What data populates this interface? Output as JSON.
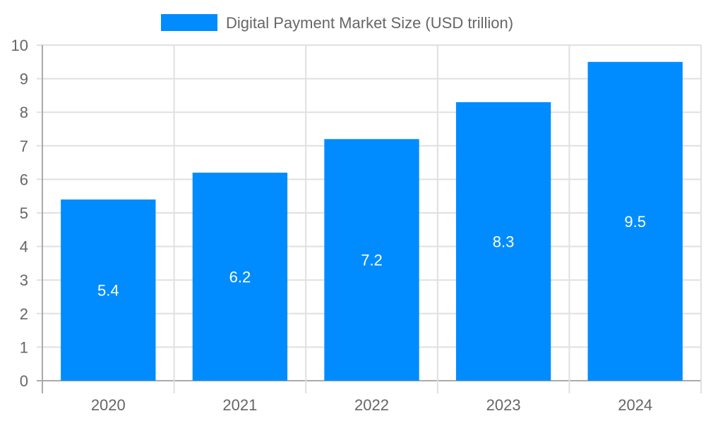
{
  "chart_data": {
    "type": "bar",
    "title": "",
    "legend": [
      {
        "label": "Digital Payment Market Size (USD trillion)",
        "color": "#008cff"
      }
    ],
    "legend_position": "top",
    "categories": [
      "2020",
      "2021",
      "2022",
      "2023",
      "2024"
    ],
    "series": [
      {
        "name": "Digital Payment Market Size (USD trillion)",
        "values": [
          5.4,
          6.2,
          7.2,
          8.3,
          9.5
        ],
        "color": "#008cff"
      }
    ],
    "data_labels": [
      "5.4",
      "6.2",
      "7.2",
      "8.3",
      "9.5"
    ],
    "xlabel": "",
    "ylabel": "",
    "ylim": [
      0,
      10
    ],
    "yticks": [
      "0",
      "1",
      "2",
      "3",
      "4",
      "5",
      "6",
      "7",
      "8",
      "9",
      "10"
    ],
    "grid": true
  }
}
